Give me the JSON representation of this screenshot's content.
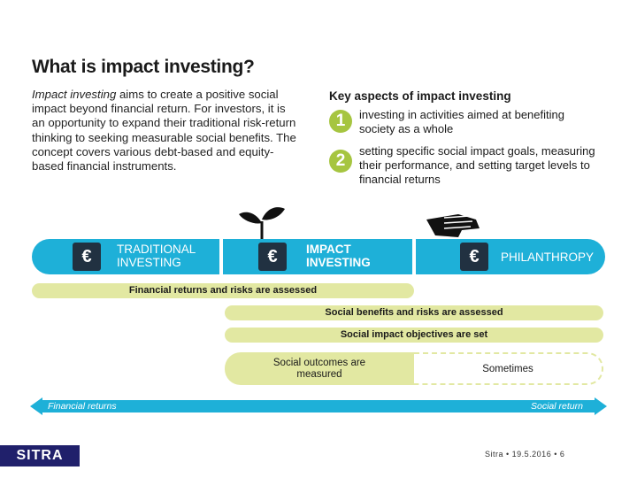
{
  "title": "What is impact investing?",
  "intro": {
    "lead": "Impact investing",
    "body": " aims to create a positive social impact beyond financial return. For investors, it is an opportunity to expand their traditional risk-return thinking to seeking measurable social benefits. The concept covers various debt-based and equity-based financial instruments."
  },
  "key_aspects": {
    "title": "Key aspects of impact investing",
    "items": [
      {
        "num": "1",
        "text": "investing in activities aimed at benefiting society as a whole"
      },
      {
        "num": "2",
        "text": "setting specific social impact goals, measuring their performance, and setting target levels to financial returns"
      }
    ]
  },
  "spectrum": {
    "segments": [
      {
        "label": "TRADITIONAL INVESTING",
        "icon": "euro-wallet-icon"
      },
      {
        "label": "IMPACT INVESTING",
        "icon": "euro-wallet-sprout-icon"
      },
      {
        "label": "PHILANTHROPY",
        "icon": "euro-wallet-hand-icon"
      }
    ],
    "currency_symbol": "€"
  },
  "bars": {
    "financial": "Financial returns and risks are assessed",
    "social_benefits": "Social benefits and risks are assessed",
    "social_objectives": "Social impact objectives are set",
    "outcomes": "Social outcomes are measured",
    "sometimes": "Sometimes"
  },
  "axis": {
    "left": "Financial returns",
    "right": "Social return"
  },
  "footer": {
    "logo": "SITRA",
    "text": "Sitra • 19.5.2016 • 6"
  },
  "colors": {
    "band": "#1eb0d8",
    "bar": "#e2e8a2",
    "badge": "#a6c540",
    "logo_bg": "#20206b"
  }
}
